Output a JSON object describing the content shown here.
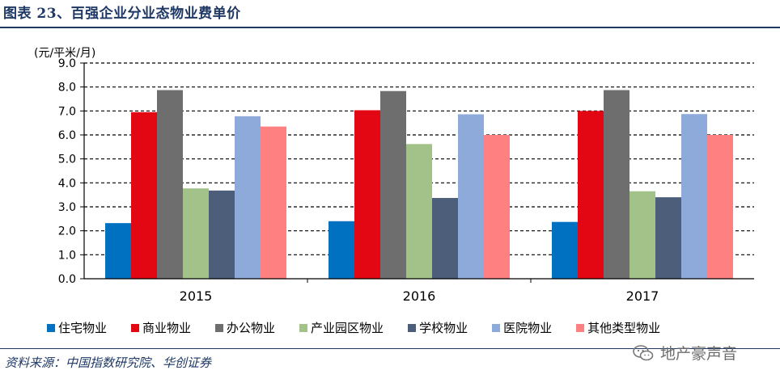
{
  "title": "图表 23、百强企业分业态物业费单价",
  "unit": "(元/平米/月)",
  "source": "资料来源：中国指数研究院、华创证券",
  "watermark": "地产豪声音",
  "chart_data": {
    "type": "bar",
    "categories": [
      "2015",
      "2016",
      "2017"
    ],
    "ylim": [
      0,
      9
    ],
    "yticks": [
      "0.0",
      "1.0",
      "2.0",
      "3.0",
      "4.0",
      "5.0",
      "6.0",
      "7.0",
      "8.0",
      "9.0"
    ],
    "grid": true,
    "legend_position": "bottom",
    "series": [
      {
        "name": "住宅物业",
        "color": "#0070c0",
        "values": [
          2.32,
          2.4,
          2.37
        ]
      },
      {
        "name": "商业物业",
        "color": "#e30613",
        "values": [
          6.95,
          7.03,
          7.0
        ]
      },
      {
        "name": "办公物业",
        "color": "#6e6e6e",
        "values": [
          7.87,
          7.83,
          7.87
        ]
      },
      {
        "name": "产业园区物业",
        "color": "#a3c289",
        "values": [
          3.77,
          5.62,
          3.65
        ]
      },
      {
        "name": "学校物业",
        "color": "#4c5e7a",
        "values": [
          3.68,
          3.37,
          3.4
        ]
      },
      {
        "name": "医院物业",
        "color": "#8eaadb",
        "values": [
          6.78,
          6.86,
          6.87
        ]
      },
      {
        "name": "其他类型物业",
        "color": "#ff8080",
        "values": [
          6.35,
          6.0,
          6.0
        ]
      }
    ]
  }
}
